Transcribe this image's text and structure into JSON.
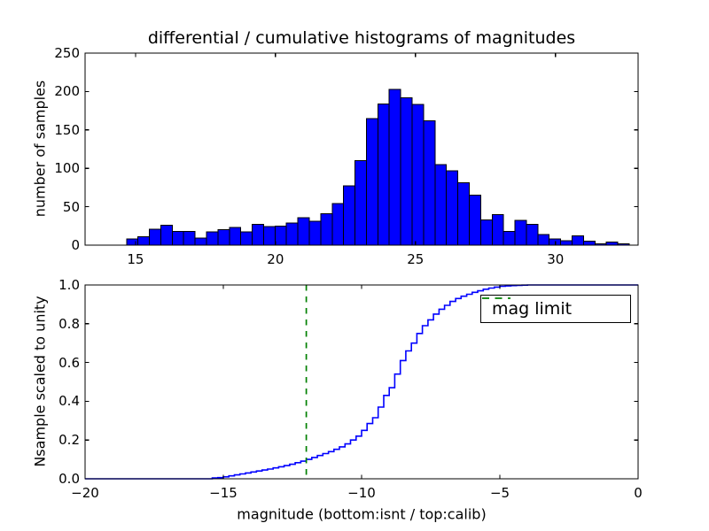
{
  "figure": {
    "background": "#ffffff",
    "axes_edge_color": "#000000",
    "tick_color": "#000000"
  },
  "chart_data": [
    {
      "type": "bar",
      "title": "differential / cumulative histograms of magnitudes",
      "ylabel": "number of samples",
      "xlim": [
        13.2,
        32.95
      ],
      "ylim": [
        0,
        250
      ],
      "grid": false,
      "bar_color": "#0000ff",
      "bar_edge_color": "#000000",
      "bin_start": 14.68,
      "bin_width": 0.408,
      "counts": [
        8,
        11,
        21,
        26,
        18,
        18,
        9,
        17,
        20,
        23,
        17,
        27,
        24,
        25,
        29,
        36,
        31,
        41,
        54,
        77,
        110,
        165,
        184,
        203,
        192,
        183,
        162,
        105,
        97,
        81,
        65,
        33,
        40,
        18,
        32,
        27,
        14,
        8,
        6,
        12,
        5,
        2,
        4,
        2
      ],
      "xticks": {
        "values": [
          15,
          20,
          25,
          30
        ],
        "labels": [
          "15",
          "20",
          "25",
          "30"
        ]
      },
      "yticks": {
        "values": [
          0,
          50,
          100,
          150,
          200,
          250
        ],
        "labels": [
          "0",
          "50",
          "100",
          "150",
          "200",
          "250"
        ]
      }
    },
    {
      "type": "step-line",
      "ylabel": "Nsample scaled to unity",
      "xlabel": "magnitude (bottom:isnt / top:calib)",
      "xlim": [
        -20,
        0
      ],
      "ylim": [
        0.0,
        1.0
      ],
      "grid": false,
      "line_color": "#0000ff",
      "points": [
        [
          -20,
          0
        ],
        [
          -15.4,
          0.004
        ],
        [
          -15.2,
          0.006
        ],
        [
          -15,
          0.01
        ],
        [
          -14.8,
          0.015
        ],
        [
          -14.6,
          0.02
        ],
        [
          -14.4,
          0.025
        ],
        [
          -14.2,
          0.03
        ],
        [
          -14,
          0.035
        ],
        [
          -13.8,
          0.04
        ],
        [
          -13.6,
          0.045
        ],
        [
          -13.4,
          0.05
        ],
        [
          -13.2,
          0.056
        ],
        [
          -13,
          0.062
        ],
        [
          -12.8,
          0.068
        ],
        [
          -12.6,
          0.075
        ],
        [
          -12.4,
          0.083
        ],
        [
          -12.2,
          0.091
        ],
        [
          -12,
          0.1
        ],
        [
          -11.8,
          0.11
        ],
        [
          -11.6,
          0.12
        ],
        [
          -11.4,
          0.13
        ],
        [
          -11.2,
          0.14
        ],
        [
          -11,
          0.152
        ],
        [
          -10.8,
          0.165
        ],
        [
          -10.6,
          0.18
        ],
        [
          -10.4,
          0.2
        ],
        [
          -10.2,
          0.22
        ],
        [
          -10,
          0.25
        ],
        [
          -9.8,
          0.285
        ],
        [
          -9.6,
          0.315
        ],
        [
          -9.4,
          0.37
        ],
        [
          -9.2,
          0.43
        ],
        [
          -9,
          0.47
        ],
        [
          -8.8,
          0.54
        ],
        [
          -8.6,
          0.61
        ],
        [
          -8.4,
          0.66
        ],
        [
          -8.2,
          0.7
        ],
        [
          -8,
          0.75
        ],
        [
          -7.8,
          0.79
        ],
        [
          -7.6,
          0.82
        ],
        [
          -7.4,
          0.85
        ],
        [
          -7.2,
          0.875
        ],
        [
          -7,
          0.895
        ],
        [
          -6.8,
          0.915
        ],
        [
          -6.6,
          0.93
        ],
        [
          -6.4,
          0.942
        ],
        [
          -6.2,
          0.952
        ],
        [
          -6,
          0.962
        ],
        [
          -5.8,
          0.97
        ],
        [
          -5.6,
          0.978
        ],
        [
          -5.4,
          0.984
        ],
        [
          -5.2,
          0.989
        ],
        [
          -5,
          0.993
        ],
        [
          -4.8,
          0.995
        ],
        [
          -4.6,
          0.997
        ],
        [
          -4.4,
          0.998
        ],
        [
          -4.2,
          0.999
        ],
        [
          -4,
          1
        ],
        [
          0,
          1
        ]
      ],
      "mag_limit": {
        "x": -12,
        "color": "#008000",
        "line_style": "dashed"
      },
      "legend": {
        "label": "mag limit",
        "line_color": "#008000",
        "position": "upper right"
      },
      "xticks": {
        "values": [
          -20,
          -15,
          -10,
          -5,
          0
        ],
        "labels": [
          "−20",
          "−15",
          "−10",
          "−5",
          "0"
        ]
      },
      "yticks": {
        "values": [
          0,
          0.2,
          0.4,
          0.6,
          0.8,
          1.0
        ],
        "labels": [
          "0.0",
          "0.2",
          "0.4",
          "0.6",
          "0.8",
          "1.0"
        ]
      }
    }
  ]
}
